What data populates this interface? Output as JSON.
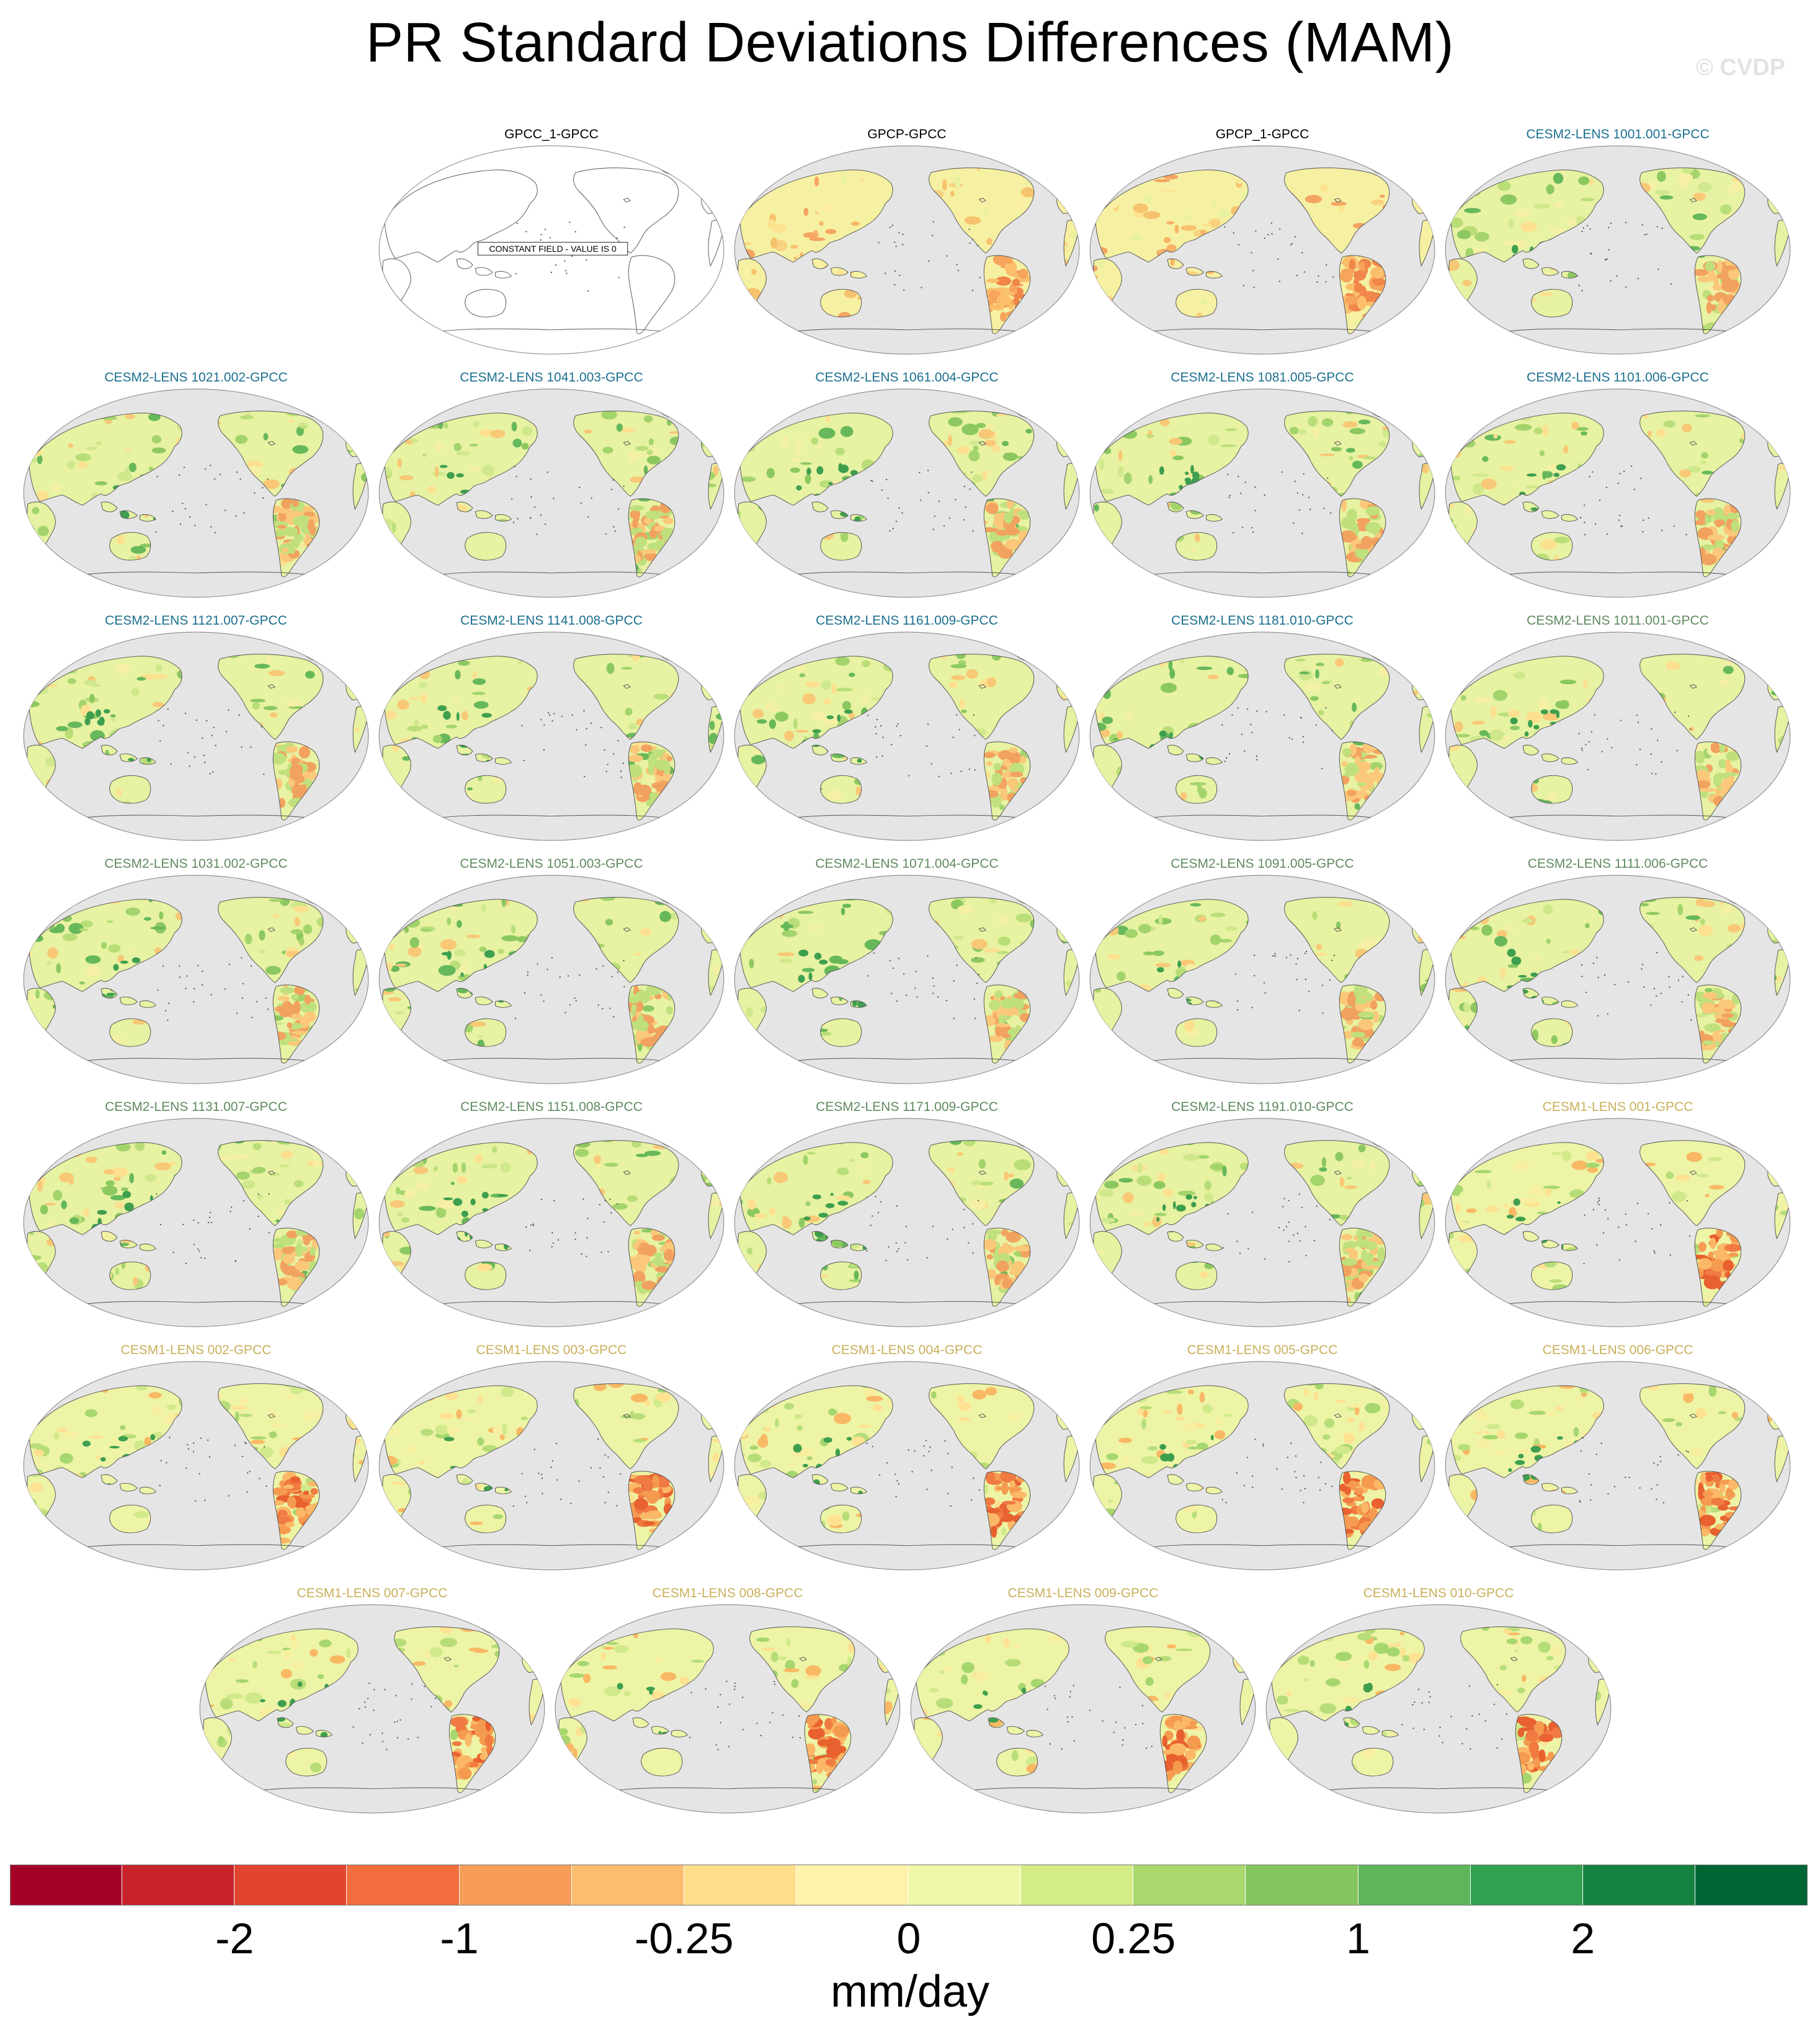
{
  "title": "PR Standard Deviations Differences (MAM)",
  "watermark": "© CVDP",
  "constant_field_label": "CONSTANT FIELD - VALUE IS 0",
  "units": "mm/day",
  "colors": {
    "cesm2_group1": "#1b6f8f",
    "cesm2_group2": "#5f8a5f",
    "cesm1": "#c9b05a",
    "obs": "#000000",
    "ocean": "#e5e5e5",
    "coast": "#555555"
  },
  "colorbar": {
    "colors": [
      "#a50026",
      "#c8232b",
      "#e2452f",
      "#f26e3e",
      "#f89c59",
      "#fcbe6e",
      "#fede8a",
      "#fff3ab",
      "#f0f7a8",
      "#d4ec85",
      "#a9d86d",
      "#85c55d",
      "#5eb55a",
      "#31a050",
      "#13833f",
      "#006535"
    ],
    "labels": [
      "-2",
      "-1",
      "-0.25",
      "0",
      "0.25",
      "1",
      "2"
    ]
  },
  "panels": [
    {
      "label": "GPCC_1-GPCC",
      "group": "obs",
      "constant": true
    },
    {
      "label": "GPCP-GPCC",
      "group": "obs",
      "style": "obs"
    },
    {
      "label": "GPCP_1-GPCC",
      "group": "obs",
      "style": "obs"
    },
    {
      "label": "CESM2-LENS 1001.001-GPCC",
      "group": "cesm2_group1",
      "style": "cesm2"
    },
    {
      "label": "CESM2-LENS 1021.002-GPCC",
      "group": "cesm2_group1",
      "style": "cesm2"
    },
    {
      "label": "CESM2-LENS 1041.003-GPCC",
      "group": "cesm2_group1",
      "style": "cesm2"
    },
    {
      "label": "CESM2-LENS 1061.004-GPCC",
      "group": "cesm2_group1",
      "style": "cesm2"
    },
    {
      "label": "CESM2-LENS 1081.005-GPCC",
      "group": "cesm2_group1",
      "style": "cesm2"
    },
    {
      "label": "CESM2-LENS 1101.006-GPCC",
      "group": "cesm2_group1",
      "style": "cesm2"
    },
    {
      "label": "CESM2-LENS 1121.007-GPCC",
      "group": "cesm2_group1",
      "style": "cesm2"
    },
    {
      "label": "CESM2-LENS 1141.008-GPCC",
      "group": "cesm2_group1",
      "style": "cesm2"
    },
    {
      "label": "CESM2-LENS 1161.009-GPCC",
      "group": "cesm2_group1",
      "style": "cesm2"
    },
    {
      "label": "CESM2-LENS 1181.010-GPCC",
      "group": "cesm2_group1",
      "style": "cesm2"
    },
    {
      "label": "CESM2-LENS 1011.001-GPCC",
      "group": "cesm2_group2",
      "style": "cesm2"
    },
    {
      "label": "CESM2-LENS 1031.002-GPCC",
      "group": "cesm2_group2",
      "style": "cesm2"
    },
    {
      "label": "CESM2-LENS 1051.003-GPCC",
      "group": "cesm2_group2",
      "style": "cesm2"
    },
    {
      "label": "CESM2-LENS 1071.004-GPCC",
      "group": "cesm2_group2",
      "style": "cesm2"
    },
    {
      "label": "CESM2-LENS 1091.005-GPCC",
      "group": "cesm2_group2",
      "style": "cesm2"
    },
    {
      "label": "CESM2-LENS 1111.006-GPCC",
      "group": "cesm2_group2",
      "style": "cesm2"
    },
    {
      "label": "CESM2-LENS 1131.007-GPCC",
      "group": "cesm2_group2",
      "style": "cesm2"
    },
    {
      "label": "CESM2-LENS 1151.008-GPCC",
      "group": "cesm2_group2",
      "style": "cesm2"
    },
    {
      "label": "CESM2-LENS 1171.009-GPCC",
      "group": "cesm2_group2",
      "style": "cesm2"
    },
    {
      "label": "CESM2-LENS 1191.010-GPCC",
      "group": "cesm2_group2",
      "style": "cesm2"
    },
    {
      "label": "CESM1-LENS 001-GPCC",
      "group": "cesm1",
      "style": "cesm1"
    },
    {
      "label": "CESM1-LENS 002-GPCC",
      "group": "cesm1",
      "style": "cesm1"
    },
    {
      "label": "CESM1-LENS 003-GPCC",
      "group": "cesm1",
      "style": "cesm1"
    },
    {
      "label": "CESM1-LENS 004-GPCC",
      "group": "cesm1",
      "style": "cesm1"
    },
    {
      "label": "CESM1-LENS 005-GPCC",
      "group": "cesm1",
      "style": "cesm1"
    },
    {
      "label": "CESM1-LENS 006-GPCC",
      "group": "cesm1",
      "style": "cesm1"
    },
    {
      "label": "CESM1-LENS 007-GPCC",
      "group": "cesm1",
      "style": "cesm1"
    },
    {
      "label": "CESM1-LENS 008-GPCC",
      "group": "cesm1",
      "style": "cesm1"
    },
    {
      "label": "CESM1-LENS 009-GPCC",
      "group": "cesm1",
      "style": "cesm1"
    },
    {
      "label": "CESM1-LENS 010-GPCC",
      "group": "cesm1",
      "style": "cesm1"
    }
  ]
}
